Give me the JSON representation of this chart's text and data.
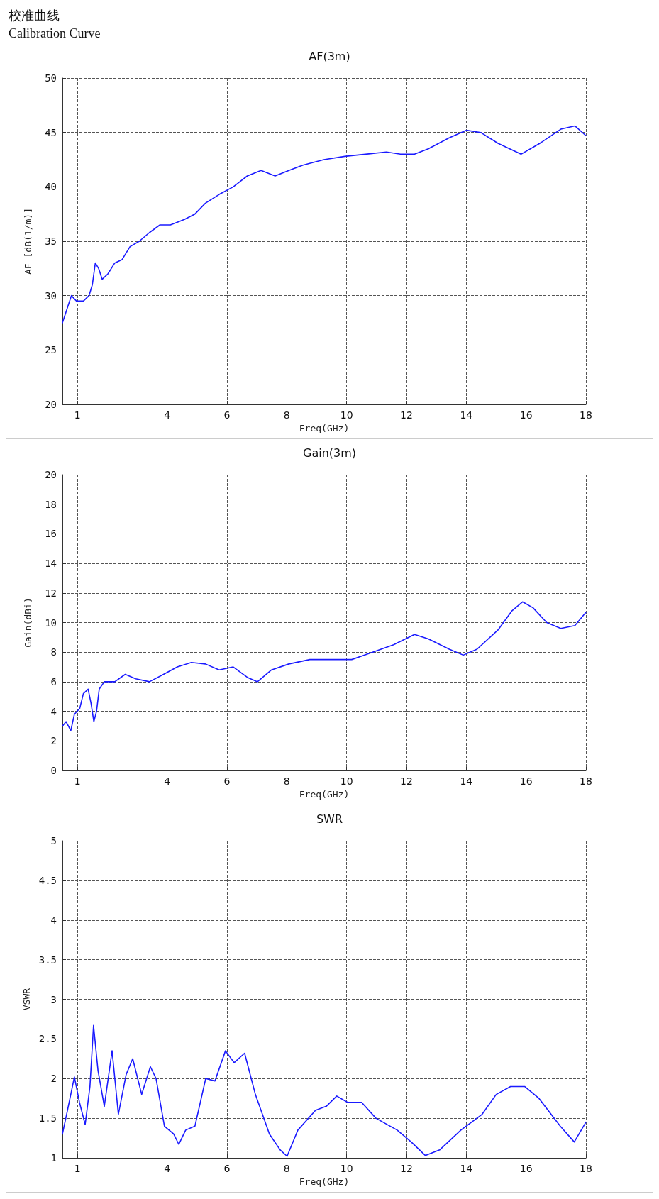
{
  "chart_data": [
    {
      "type": "line",
      "title": "AF(3m)",
      "annotations": [
        "校准曲线",
        "Calibration Curve"
      ],
      "xlabel": "Freq(GHz)",
      "ylabel": "AF [dB(1/m)]",
      "xlim": [
        0.5,
        18
      ],
      "xticks": [
        1,
        4,
        6,
        8,
        10,
        12,
        14,
        16,
        18
      ],
      "ylim": [
        20,
        50
      ],
      "yticks": [
        20,
        25,
        30,
        35,
        40,
        45,
        50
      ],
      "grid": true,
      "marker": "none",
      "line_style": "solid",
      "series": [
        {
          "color": "#1a1aff",
          "x": [
            0.5,
            0.62,
            0.8,
            0.97,
            1.2,
            1.39,
            1.5,
            1.6,
            1.71,
            1.83,
            2.02,
            2.25,
            2.49,
            2.76,
            3.07,
            3.41,
            3.76,
            4.11,
            4.58,
            4.93,
            5.28,
            5.74,
            6.21,
            6.68,
            7.14,
            7.61,
            8.07,
            8.54,
            9.24,
            9.94,
            10.63,
            11.33,
            11.8,
            12.27,
            12.73,
            13.43,
            14.01,
            14.48,
            15.06,
            15.83,
            16.46,
            17.16,
            17.63,
            18
          ],
          "values": [
            27.5,
            28.5,
            30,
            29.5,
            29.5,
            30,
            31,
            33,
            32.5,
            31.5,
            32,
            33,
            33.3,
            34.5,
            35,
            35.8,
            36.5,
            36.5,
            37,
            37.5,
            38.5,
            39.3,
            40,
            41,
            41.5,
            41,
            41.5,
            42,
            42.5,
            42.8,
            43,
            43.2,
            43,
            43,
            43.5,
            44.5,
            45.2,
            45,
            44,
            43,
            44,
            45.3,
            45.6,
            44.7
          ]
        }
      ]
    },
    {
      "type": "line",
      "title": "Gain(3m)",
      "xlabel": "Freq(GHz)",
      "ylabel": "Gain(dBi)",
      "xlim": [
        0.5,
        18
      ],
      "xticks": [
        1,
        4,
        6,
        8,
        10,
        12,
        14,
        16,
        18
      ],
      "ylim": [
        0,
        20
      ],
      "yticks": [
        0,
        2,
        4,
        6,
        8,
        10,
        12,
        14,
        16,
        18,
        20
      ],
      "grid": true,
      "marker": "none",
      "line_style": "solid",
      "series": [
        {
          "color": "#1a1aff",
          "x": [
            0.5,
            0.62,
            0.78,
            0.9,
            1.08,
            1.2,
            1.36,
            1.46,
            1.55,
            1.64,
            1.73,
            1.9,
            2.25,
            2.6,
            2.95,
            3.41,
            3.88,
            4.34,
            4.81,
            5.28,
            5.74,
            6.21,
            6.68,
            7.02,
            7.49,
            8.07,
            8.77,
            9.47,
            10.17,
            10.87,
            11.57,
            12.27,
            12.73,
            13.43,
            13.9,
            14.36,
            15.06,
            15.53,
            15.88,
            16.23,
            16.69,
            17.16,
            17.63,
            18
          ],
          "values": [
            3,
            3.3,
            2.7,
            3.8,
            4.2,
            5.2,
            5.5,
            4.5,
            3.3,
            4,
            5.5,
            6,
            6,
            6.5,
            6.2,
            6,
            6.5,
            7,
            7.3,
            7.2,
            6.8,
            7,
            6.3,
            6,
            6.8,
            7.2,
            7.5,
            7.5,
            7.5,
            8,
            8.5,
            9.2,
            8.9,
            8.2,
            7.8,
            8.2,
            9.5,
            10.8,
            11.4,
            11,
            10,
            9.6,
            9.8,
            10.7
          ]
        }
      ]
    },
    {
      "type": "line",
      "title": "SWR",
      "xlabel": "Freq(GHz)",
      "ylabel": "VSWR",
      "xlim": [
        0.5,
        18
      ],
      "xticks": [
        1,
        4,
        6,
        8,
        10,
        12,
        14,
        16,
        18
      ],
      "ylim": [
        1,
        5
      ],
      "yticks": [
        1,
        1.5,
        2,
        2.5,
        3,
        3.5,
        4,
        4.5,
        5
      ],
      "grid": true,
      "marker": "none",
      "line_style": "solid",
      "series": [
        {
          "color": "#1a1aff",
          "x": [
            0.5,
            0.67,
            0.9,
            1.07,
            1.26,
            1.42,
            1.54,
            1.69,
            1.9,
            2.16,
            2.37,
            2.63,
            2.85,
            3.15,
            3.44,
            3.63,
            3.91,
            4.22,
            4.39,
            4.62,
            4.93,
            5.29,
            5.6,
            5.95,
            6.24,
            6.59,
            6.95,
            7.42,
            7.78,
            8.01,
            8.37,
            8.96,
            9.32,
            9.67,
            10.03,
            10.5,
            10.98,
            11.69,
            12.16,
            12.63,
            13.11,
            13.82,
            14.53,
            15.0,
            15.48,
            15.95,
            16.43,
            17.14,
            17.61,
            18
          ],
          "values": [
            1.3,
            1.6,
            2.02,
            1.7,
            1.42,
            1.9,
            2.67,
            2.1,
            1.65,
            2.35,
            1.55,
            2.05,
            2.25,
            1.8,
            2.15,
            2.0,
            1.4,
            1.3,
            1.17,
            1.35,
            1.4,
            2.0,
            1.97,
            2.35,
            2.2,
            2.32,
            1.8,
            1.3,
            1.1,
            1.02,
            1.35,
            1.6,
            1.65,
            1.78,
            1.7,
            1.7,
            1.5,
            1.35,
            1.2,
            1.03,
            1.1,
            1.35,
            1.55,
            1.8,
            1.9,
            1.9,
            1.75,
            1.4,
            1.2,
            1.45
          ]
        }
      ]
    }
  ]
}
